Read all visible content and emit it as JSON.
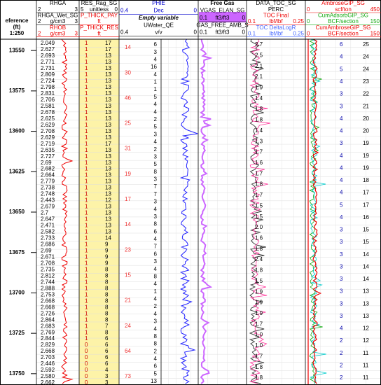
{
  "header": {
    "depth": {
      "lines": [
        "eference",
        "(ft)",
        "1:250"
      ]
    },
    "tracks": [
      {
        "rows": [
          "RHGA",
          [
            "2",
            "",
            "3"
          ],
          "RHGA_Wet_SG",
          [
            "2",
            "g/cm3",
            "3"
          ],
          "RHOB",
          [
            "2",
            "g/cm3",
            "3"
          ]
        ]
      },
      {
        "rows": [
          "RES_Rag_SG",
          [
            "5",
            "unitless",
            "0"
          ],
          "P_THICK_PAY",
          [
            "",
            "ft",
            ""
          ],
          "P_THICK_RES",
          [
            "",
            "ft",
            ""
          ]
        ]
      },
      {
        "rows": [
          "PHIE",
          [
            "0.4",
            "Dec",
            "0"
          ],
          "Empty variable",
          "UWater_QE",
          [
            "0.4",
            "v/v",
            "0"
          ]
        ]
      },
      {
        "rows": [
          "Free Gas",
          "VGAS_ELAN_SG",
          [
            "0.1",
            "ft3/ft3",
            "0"
          ],
          "GAS_FREE_AMB_S",
          [
            "0.1",
            "ft3/ft3",
            "0"
          ]
        ]
      },
      {
        "rows": [
          "DATA_TOC_SG",
          "PERC",
          "TOC Final",
          [
            "0.1",
            "lbf/lbf",
            "0.25"
          ],
          "TOC DeltaLogR",
          [
            "0.1",
            "lbf/lbf",
            "0.25"
          ]
        ]
      },
      {
        "rows": [
          "AmbroseGIP_SG",
          [
            "0",
            "scf/ton",
            "450"
          ],
          "CumAdsorbGIP_SG",
          [
            "0",
            "BCF/section",
            "150"
          ],
          "CumAmbroseGIP_SG",
          [
            "0",
            "BCF/section",
            "150"
          ]
        ]
      }
    ]
  },
  "depth_axis": {
    "lim": [
      13543,
      13757
    ],
    "ticks": [
      13550,
      13575,
      13600,
      13625,
      13650,
      13675,
      13700,
      13725,
      13750
    ]
  },
  "columns": {
    "rhob": [
      "2.049",
      "2.627",
      "2.693",
      "2.771",
      "2.731",
      "2.809",
      "2.724",
      "2.798",
      "2.831",
      "2.706",
      "2.581",
      "2.678",
      "2.625",
      "2.629",
      "2.708",
      "2.629",
      "2.719",
      "2.635",
      "2.727",
      "2.69",
      "2.682",
      "2.664",
      "2.779",
      "2.738",
      "2.748",
      "2.443",
      "2.679",
      "2.7",
      "2.647",
      "2.471",
      "2.582",
      "2.733",
      "2.686",
      "2.69",
      "2.671",
      "2.708",
      "2.735",
      "2.812",
      "2.744",
      "2.888",
      "2.753",
      "2.668",
      "2.668",
      "2.726",
      "2.864",
      "2.683",
      "2.769",
      "2.844",
      "2.829",
      "2.668",
      "2.703",
      "2.446",
      "2.592",
      "2.580",
      "2.662"
    ],
    "res_left": [
      "1",
      "1",
      "1",
      "1",
      "1",
      "1",
      "1",
      "1",
      "1",
      "1",
      "1",
      "1",
      "1",
      "1",
      "1",
      "1",
      "1",
      "1",
      "1",
      "1",
      "1",
      "1",
      "1",
      "1",
      "1",
      "1",
      "1",
      "1",
      "1",
      "1",
      "1",
      "1",
      "1",
      "1",
      "1",
      "1",
      "1",
      "1",
      "1",
      "1",
      "1",
      "1",
      "1",
      "1",
      "1",
      "1",
      "1",
      "1",
      "0",
      "0",
      "0",
      "0",
      "0",
      "0",
      "0"
    ],
    "res_right": [
      "17",
      "17",
      "13",
      "13",
      "13",
      "13",
      "13",
      "13",
      "13",
      "13",
      "13",
      "13",
      "13",
      "13",
      "13",
      "13",
      "17",
      "13",
      "13",
      "13",
      "13",
      "13",
      "13",
      "13",
      "13",
      "12",
      "13",
      "13",
      "13",
      "13",
      "13",
      "14",
      "9",
      "9",
      "9",
      "9",
      "8",
      "8",
      "8",
      "8",
      "8",
      "8",
      "8",
      "8",
      "8",
      "7",
      "8",
      "6",
      "6",
      "6",
      "6",
      "6",
      "4",
      "3",
      "3"
    ],
    "phie_red": [
      "14",
      "30",
      "46",
      "25",
      "31",
      "19",
      "17",
      "14",
      "23",
      "15",
      "21",
      "24",
      "64",
      "73"
    ],
    "phie_dark": [
      "6",
      "3",
      "4",
      "16",
      "4",
      "1",
      "1",
      "5",
      "4",
      "4",
      "2",
      "5",
      "3",
      "4",
      "2",
      "3",
      "5",
      "8",
      "3",
      "7",
      "7",
      "3",
      "4",
      "3",
      "8",
      "6",
      "4",
      "7",
      "6",
      "3",
      "4",
      "8",
      "4",
      "1",
      "4",
      "2",
      "4",
      "3",
      "4",
      "8",
      "8",
      "2",
      "4",
      "6",
      "5",
      "13"
    ],
    "toc": [
      "2.7",
      "2.5",
      "2.1",
      "2.1",
      "1.9",
      "1.4",
      "1.8",
      "1.8",
      "1.4",
      "1.3",
      "1.7",
      "1.6",
      "1.7",
      "1.8",
      "1.7",
      "1.5",
      "1.5",
      "2.0",
      "1.6",
      "1.8",
      "2.4",
      "1.8",
      "1.5",
      "1.9",
      "1.9",
      "1.9",
      "1.7",
      "1.0",
      "1.0",
      "1.7",
      "1.8",
      "1.8"
    ],
    "amb_left": [
      "6",
      "4",
      "5",
      "4",
      "3",
      "3",
      "4",
      "4",
      "3",
      "4",
      "4",
      "4",
      "4",
      "5",
      "4",
      "3",
      "3",
      "3",
      "3",
      "3",
      "3",
      "3",
      "3",
      "4",
      "2",
      "2",
      "2",
      "2"
    ],
    "amb_right": [
      "25",
      "24",
      "24",
      "23",
      "22",
      "21",
      "20",
      "20",
      "19",
      "19",
      "19",
      "18",
      "17",
      "17",
      "16",
      "15",
      "15",
      "14",
      "14",
      "14",
      "13",
      "13",
      "13",
      "12",
      "12",
      "11",
      "11",
      "11"
    ]
  }
}
